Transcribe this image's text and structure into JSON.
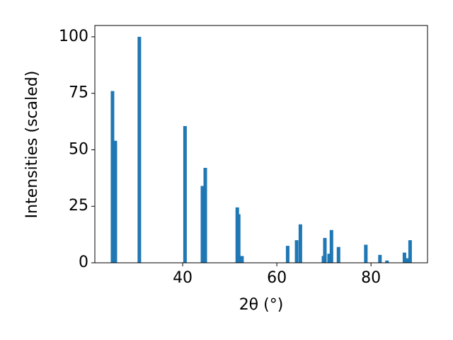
{
  "chart_data": {
    "type": "bar",
    "xlabel": "2θ (°)",
    "ylabel": "Intensities (scaled)",
    "x": [
      25.1,
      25.7,
      30.8,
      40.5,
      44.2,
      44.8,
      51.6,
      51.9,
      52.6,
      62.3,
      64.2,
      65.0,
      69.9,
      70.2,
      71.1,
      71.6,
      73.1,
      78.9,
      81.9,
      83.4,
      87.1,
      87.7,
      88.3
    ],
    "values": [
      76,
      54,
      100,
      60.5,
      34,
      42,
      24.5,
      21.5,
      3,
      7.5,
      10,
      17,
      3,
      11,
      4,
      14.5,
      7,
      8,
      3.5,
      1,
      4.5,
      2,
      10
    ],
    "color": "#1f77b4",
    "xlim": [
      21.35,
      92.0
    ],
    "ylim": [
      0,
      105
    ],
    "xticks": [
      40,
      60,
      80
    ],
    "yticks": [
      0,
      25,
      50,
      75,
      100
    ],
    "grid": false
  }
}
